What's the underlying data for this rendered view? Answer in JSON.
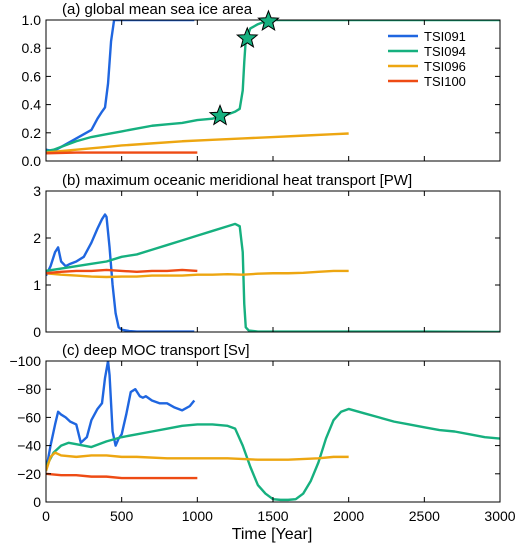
{
  "figure": {
    "xlabel": "Time [Year]",
    "xticks": [
      0,
      500,
      1000,
      1500,
      2000,
      2500,
      3000
    ],
    "xlim": [
      0,
      3000
    ]
  },
  "colors": {
    "TSI091": "#1f66e0",
    "TSI094": "#16b07f",
    "TSI096": "#eda611",
    "TSI100": "#ee4b14",
    "star_fill": "#16b07f"
  },
  "chart_data": [
    {
      "type": "line",
      "title": "(a) global mean sea ice area",
      "ylim": [
        0,
        1
      ],
      "yticks": [
        0.0,
        0.2,
        0.4,
        0.6,
        0.8,
        1.0
      ],
      "ytick_labels": [
        "0.0",
        "0.2",
        "0.4",
        "0.6",
        "0.8",
        "1.0"
      ],
      "legend": {
        "placement": "top-right",
        "entries": [
          "TSI091",
          "TSI094",
          "TSI096",
          "TSI100"
        ]
      },
      "markers": [
        {
          "series": "TSI094",
          "x": 1150,
          "y": 0.32
        },
        {
          "series": "TSI094",
          "x": 1330,
          "y": 0.87
        },
        {
          "series": "TSI094",
          "x": 1470,
          "y": 0.99
        }
      ],
      "series": [
        {
          "name": "TSI091",
          "x": [
            0,
            50,
            100,
            150,
            200,
            250,
            300,
            340,
            370,
            390,
            410,
            430,
            450,
            470,
            490,
            980
          ],
          "y": [
            0.08,
            0.07,
            0.1,
            0.13,
            0.16,
            0.19,
            0.22,
            0.3,
            0.35,
            0.38,
            0.55,
            0.85,
            1.0,
            1.0,
            1.0,
            1.0
          ]
        },
        {
          "name": "TSI094",
          "x": [
            0,
            50,
            100,
            200,
            300,
            400,
            500,
            600,
            700,
            800,
            900,
            1000,
            1100,
            1150,
            1200,
            1250,
            1280,
            1300,
            1310,
            1320,
            1330,
            1350,
            1400,
            1450,
            1500,
            2000,
            2500,
            3000
          ],
          "y": [
            0.07,
            0.08,
            0.1,
            0.14,
            0.17,
            0.19,
            0.21,
            0.23,
            0.25,
            0.26,
            0.27,
            0.29,
            0.3,
            0.32,
            0.33,
            0.35,
            0.37,
            0.5,
            0.7,
            0.86,
            0.88,
            0.94,
            0.97,
            0.99,
            1.0,
            1.0,
            1.0,
            1.0
          ]
        },
        {
          "name": "TSI096",
          "x": [
            0,
            100,
            200,
            300,
            400,
            500,
            700,
            900,
            1100,
            1300,
            1500,
            1700,
            1900,
            2000
          ],
          "y": [
            0.06,
            0.07,
            0.08,
            0.09,
            0.1,
            0.11,
            0.125,
            0.14,
            0.15,
            0.16,
            0.17,
            0.18,
            0.19,
            0.195
          ]
        },
        {
          "name": "TSI100",
          "x": [
            0,
            200,
            400,
            600,
            800,
            1000
          ],
          "y": [
            0.055,
            0.06,
            0.06,
            0.06,
            0.06,
            0.06
          ]
        }
      ]
    },
    {
      "type": "line",
      "title": "(b) maximum oceanic meridional heat transport [PW]",
      "ylim": [
        0,
        3
      ],
      "yticks": [
        0,
        1,
        2,
        3
      ],
      "ytick_labels": [
        "0",
        "1",
        "2",
        "3"
      ],
      "series": [
        {
          "name": "TSI091",
          "x": [
            0,
            30,
            60,
            80,
            100,
            130,
            160,
            200,
            250,
            300,
            340,
            370,
            390,
            400,
            420,
            440,
            460,
            480,
            500,
            550,
            600,
            700,
            800,
            900,
            980
          ],
          "y": [
            1.2,
            1.4,
            1.7,
            1.8,
            1.5,
            1.4,
            1.45,
            1.5,
            1.6,
            1.9,
            2.2,
            2.4,
            2.5,
            2.45,
            1.8,
            1.0,
            0.4,
            0.1,
            0.05,
            0.02,
            0.01,
            0.01,
            0.01,
            0.01,
            0.01
          ]
        },
        {
          "name": "TSI094",
          "x": [
            0,
            100,
            200,
            300,
            400,
            500,
            600,
            700,
            800,
            900,
            1000,
            1100,
            1200,
            1250,
            1280,
            1300,
            1310,
            1320,
            1340,
            1400,
            2000,
            2500,
            3000
          ],
          "y": [
            1.3,
            1.35,
            1.4,
            1.45,
            1.5,
            1.6,
            1.65,
            1.75,
            1.85,
            1.95,
            2.05,
            2.15,
            2.25,
            2.3,
            2.25,
            1.7,
            0.6,
            0.1,
            0.03,
            0.01,
            0.01,
            0.01,
            0.0
          ]
        },
        {
          "name": "TSI096",
          "x": [
            0,
            100,
            200,
            300,
            400,
            500,
            600,
            700,
            800,
            900,
            1000,
            1100,
            1200,
            1300,
            1400,
            1500,
            1600,
            1700,
            1800,
            1900,
            2000
          ],
          "y": [
            1.25,
            1.22,
            1.2,
            1.18,
            1.17,
            1.18,
            1.18,
            1.2,
            1.2,
            1.2,
            1.22,
            1.22,
            1.23,
            1.22,
            1.24,
            1.25,
            1.25,
            1.26,
            1.28,
            1.3,
            1.3
          ]
        },
        {
          "name": "TSI100",
          "x": [
            0,
            100,
            200,
            300,
            400,
            500,
            600,
            700,
            800,
            900,
            1000
          ],
          "y": [
            1.25,
            1.28,
            1.3,
            1.3,
            1.32,
            1.3,
            1.28,
            1.3,
            1.3,
            1.32,
            1.3
          ]
        }
      ]
    },
    {
      "type": "line",
      "title": "(c) deep MOC transport [Sv]",
      "ylim": [
        0,
        -100
      ],
      "yticks": [
        -100,
        -80,
        -60,
        -40,
        -20,
        0
      ],
      "ytick_labels": [
        "−100",
        "−80",
        "−60",
        "−40",
        "−20",
        "0"
      ],
      "series": [
        {
          "name": "TSI091",
          "x": [
            0,
            30,
            60,
            80,
            100,
            130,
            160,
            200,
            230,
            270,
            300,
            340,
            370,
            390,
            410,
            420,
            440,
            460,
            480,
            500,
            530,
            560,
            590,
            620,
            640,
            660,
            700,
            750,
            800,
            850,
            900,
            950,
            980
          ],
          "y": [
            -22,
            -40,
            -55,
            -64,
            -62,
            -60,
            -57,
            -55,
            -42,
            -46,
            -58,
            -66,
            -70,
            -88,
            -100,
            -90,
            -50,
            -40,
            -45,
            -48,
            -62,
            -78,
            -80,
            -75,
            -74,
            -75,
            -72,
            -70,
            -70,
            -67,
            -65,
            -68,
            -72
          ]
        },
        {
          "name": "TSI094",
          "x": [
            0,
            50,
            100,
            150,
            200,
            300,
            400,
            500,
            600,
            700,
            800,
            900,
            1000,
            1100,
            1200,
            1250,
            1300,
            1350,
            1400,
            1450,
            1500,
            1550,
            1600,
            1650,
            1700,
            1750,
            1800,
            1850,
            1900,
            1950,
            2000,
            2100,
            2200,
            2300,
            2400,
            2500,
            2600,
            2700,
            2800,
            2900,
            3000
          ],
          "y": [
            -25,
            -35,
            -40,
            -42,
            -41,
            -39,
            -43,
            -46,
            -48,
            -50,
            -52,
            -54,
            -55,
            -55,
            -54,
            -52,
            -40,
            -25,
            -12,
            -6,
            -2,
            -1.5,
            -1.5,
            -2,
            -6,
            -15,
            -28,
            -45,
            -58,
            -64,
            -66,
            -63,
            -60,
            -57,
            -55,
            -53,
            -51,
            -50,
            -48,
            -46,
            -45
          ]
        },
        {
          "name": "TSI096",
          "x": [
            0,
            30,
            60,
            100,
            200,
            300,
            400,
            500,
            600,
            800,
            1000,
            1200,
            1400,
            1600,
            1800,
            1900,
            2000
          ],
          "y": [
            -22,
            -32,
            -35,
            -33,
            -32,
            -33,
            -33,
            -32,
            -32,
            -31,
            -31,
            -31,
            -30,
            -30,
            -31,
            -32,
            -32
          ]
        },
        {
          "name": "TSI100",
          "x": [
            0,
            100,
            200,
            300,
            400,
            500,
            600,
            700,
            800,
            900,
            1000
          ],
          "y": [
            -20,
            -19,
            -19,
            -18,
            -18,
            -17,
            -17,
            -17,
            -17,
            -17,
            -17
          ]
        }
      ]
    }
  ]
}
